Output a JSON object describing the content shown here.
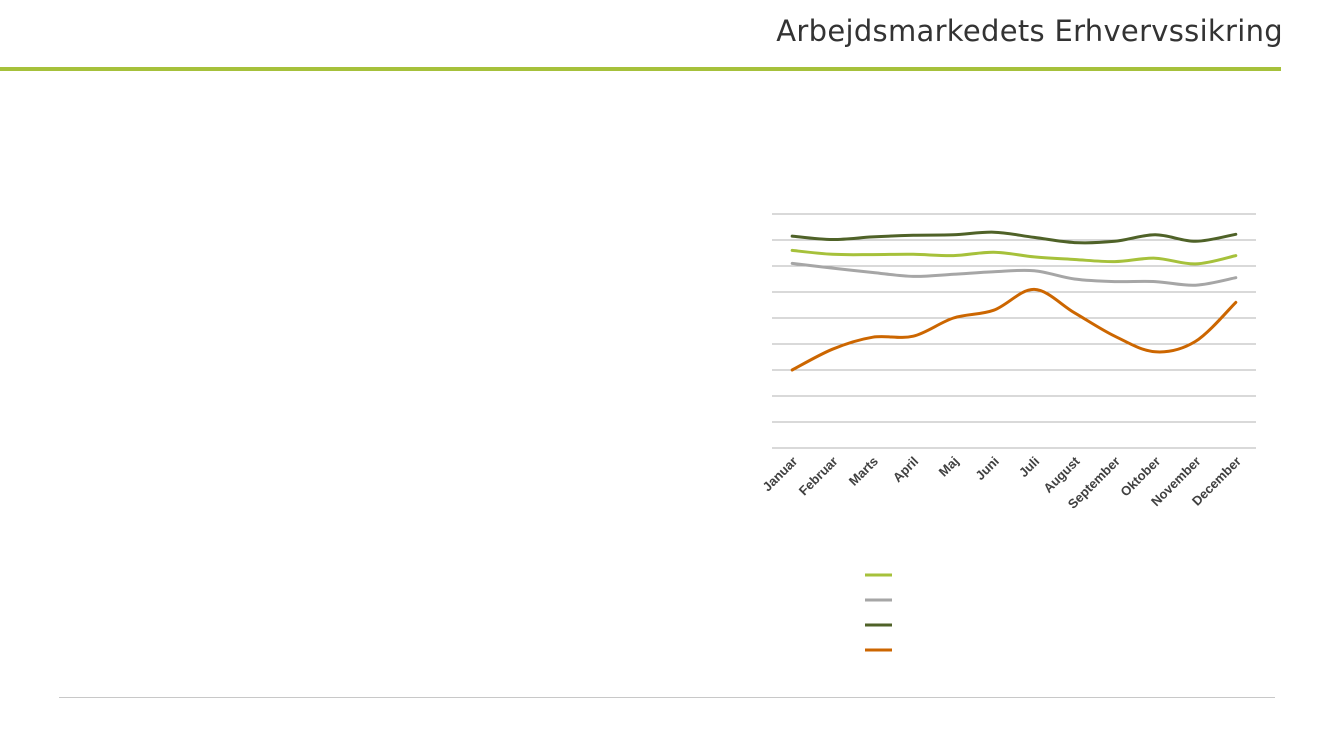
{
  "header": {
    "title": "Arbejdsmarkedets Erhvervssikring",
    "accent_color": "#a6c13b"
  },
  "footer": {
    "rule_color": "#c8c8c8"
  },
  "chart_data": {
    "type": "line",
    "categories": [
      "Januar",
      "Februar",
      "Marts",
      "April",
      "Maj",
      "Juni",
      "Juli",
      "August",
      "September",
      "Oktober",
      "November",
      "December"
    ],
    "ylim": [
      0,
      9
    ],
    "grid": true,
    "legend_position": "bottom",
    "series": [
      {
        "color": "#a6c13b",
        "values": [
          7.6,
          7.45,
          7.44,
          7.45,
          7.4,
          7.53,
          7.35,
          7.25,
          7.17,
          7.3,
          7.08,
          7.4
        ]
      },
      {
        "color": "#a6a6a6",
        "values": [
          7.1,
          6.92,
          6.75,
          6.6,
          6.68,
          6.78,
          6.82,
          6.5,
          6.4,
          6.4,
          6.26,
          6.55
        ]
      },
      {
        "color": "#4f6228",
        "values": [
          8.15,
          8.02,
          8.12,
          8.18,
          8.2,
          8.3,
          8.1,
          7.9,
          7.95,
          8.2,
          7.95,
          8.22
        ]
      },
      {
        "color": "#cc6600",
        "values": [
          3.0,
          3.8,
          4.26,
          4.3,
          5.0,
          5.3,
          6.1,
          5.2,
          4.3,
          3.7,
          4.1,
          5.6
        ]
      }
    ]
  }
}
